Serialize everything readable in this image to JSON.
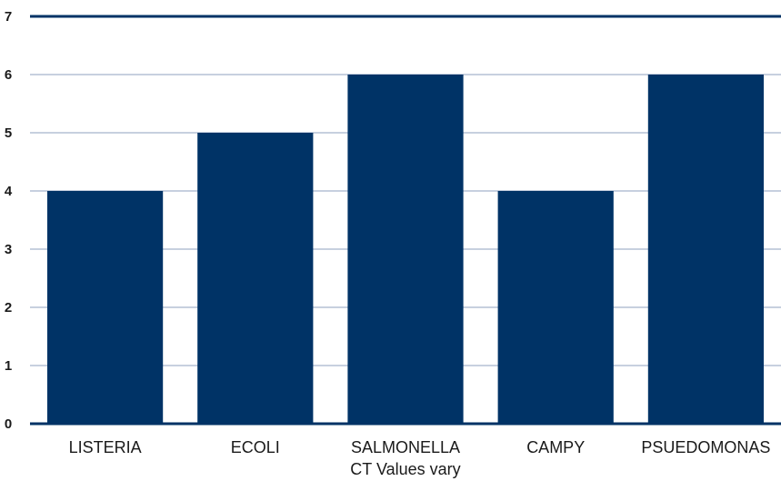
{
  "chart_data": {
    "type": "bar",
    "categories": [
      "LISTERIA",
      "ECOLI",
      "SALMONELLA",
      "CAMPY",
      "PSUEDOMONAS"
    ],
    "values": [
      4,
      5,
      6,
      4,
      6
    ],
    "title": "",
    "xlabel": "CT Values vary",
    "ylabel": "",
    "ylim": [
      0,
      7
    ],
    "yticks": [
      "0",
      "1",
      "2",
      "3",
      "4",
      "5",
      "6",
      "7"
    ],
    "grid": true,
    "legend": "none",
    "colors": {
      "bar": "#003366",
      "grid": "#8fa0bf",
      "axis": "#003366",
      "text": "#1a1a1a"
    }
  }
}
